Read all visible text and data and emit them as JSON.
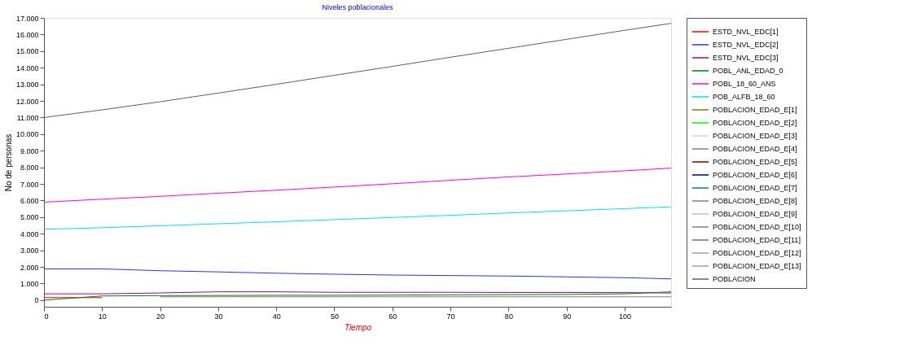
{
  "chart_data": {
    "type": "line",
    "title": "Niveles poblacionales",
    "xlabel": "Tiempo",
    "ylabel": "No de personas",
    "x": [
      0,
      10,
      20,
      30,
      40,
      50,
      60,
      70,
      80,
      90,
      100,
      108
    ],
    "xlim": [
      0,
      108
    ],
    "xticks": [
      0,
      10,
      20,
      30,
      40,
      50,
      60,
      70,
      80,
      90,
      100
    ],
    "ylim": [
      -400,
      17000
    ],
    "yticks": [
      {
        "value": 0,
        "label": "0"
      },
      {
        "value": 1000,
        "label": "1.000"
      },
      {
        "value": 2000,
        "label": "2.000"
      },
      {
        "value": 3000,
        "label": "3.000"
      },
      {
        "value": 4000,
        "label": "4.000"
      },
      {
        "value": 5000,
        "label": "5.000"
      },
      {
        "value": 6000,
        "label": "6.000"
      },
      {
        "value": 7000,
        "label": "7.000"
      },
      {
        "value": 8000,
        "label": "8.000"
      },
      {
        "value": 9000,
        "label": "9.000"
      },
      {
        "value": 10000,
        "label": "10.000"
      },
      {
        "value": 11000,
        "label": "11.000"
      },
      {
        "value": 12000,
        "label": "12.000"
      },
      {
        "value": 13000,
        "label": "13.000"
      },
      {
        "value": 14000,
        "label": "14.000"
      },
      {
        "value": 15000,
        "label": "15.000"
      },
      {
        "value": 16000,
        "label": "16.000"
      },
      {
        "value": 17000,
        "label": "17.000"
      }
    ],
    "grid": false,
    "legend": "right",
    "marker": "none",
    "line_style": "solid",
    "series": [
      {
        "name": "ESTD_NVL_EDC[1]",
        "color": "#ff0000",
        "values": [
          150,
          150,
          null,
          null,
          null,
          null,
          null,
          null,
          null,
          null,
          null,
          null
        ]
      },
      {
        "name": "ESTD_NVL_EDC[2]",
        "color": "#3030ff",
        "values": [
          1880,
          1880,
          1770,
          1700,
          1620,
          1560,
          1510,
          1480,
          1450,
          1400,
          1350,
          1280
        ]
      },
      {
        "name": "ESTD_NVL_EDC[3]",
        "color": "#a000a0",
        "values": [
          380,
          380,
          430,
          500,
          500,
          470,
          470,
          470,
          460,
          460,
          450,
          430
        ]
      },
      {
        "name": "POBL_ANL_EDAD_0",
        "color": "#008000",
        "values": [
          0,
          250,
          270,
          280,
          290,
          290,
          300,
          320,
          330,
          340,
          380,
          500
        ]
      },
      {
        "name": "POBL_18_60_ANS",
        "color": "#ff00ff",
        "values": [
          5900,
          6080,
          6250,
          6440,
          6620,
          6810,
          7010,
          7220,
          7420,
          7600,
          7790,
          7950
        ]
      },
      {
        "name": "POB_ALFB_18_60",
        "color": "#00e5e5",
        "values": [
          4270,
          4360,
          4480,
          4600,
          4720,
          4850,
          4980,
          5110,
          5250,
          5380,
          5510,
          5620
        ]
      },
      {
        "name": "POBLACION_EDAD_E[1]",
        "color": "#808000",
        "values": [
          null,
          null,
          null,
          null,
          null,
          null,
          null,
          null,
          null,
          null,
          null,
          null
        ]
      },
      {
        "name": "POBLACION_EDAD_E[2]",
        "color": "#00ff00",
        "values": [
          null,
          null,
          null,
          null,
          null,
          null,
          null,
          null,
          null,
          null,
          null,
          null
        ]
      },
      {
        "name": "POBLACION_EDAD_E[3]",
        "color": "#d3d3d3",
        "values": [
          null,
          null,
          null,
          null,
          null,
          null,
          null,
          null,
          null,
          null,
          null,
          null
        ]
      },
      {
        "name": "POBLACION_EDAD_E[4]",
        "color": "#808080",
        "values": [
          null,
          null,
          200,
          200,
          200,
          200,
          200,
          200,
          200,
          200,
          200,
          200
        ]
      },
      {
        "name": "POBLACION_EDAD_E[5]",
        "color": "#800000",
        "values": [
          null,
          null,
          null,
          null,
          null,
          null,
          null,
          null,
          null,
          null,
          null,
          null
        ]
      },
      {
        "name": "POBLACION_EDAD_E[6]",
        "color": "#000080",
        "values": [
          null,
          null,
          null,
          null,
          null,
          null,
          null,
          null,
          null,
          null,
          null,
          null
        ]
      },
      {
        "name": "POBLACION_EDAD_E[7]",
        "color": "#008080",
        "values": [
          null,
          null,
          null,
          null,
          null,
          null,
          null,
          null,
          null,
          null,
          null,
          null
        ]
      },
      {
        "name": "POBLACION_EDAD_E[8]",
        "color": "#808080",
        "values": [
          null,
          null,
          null,
          null,
          null,
          null,
          null,
          null,
          null,
          null,
          null,
          null
        ]
      },
      {
        "name": "POBLACION_EDAD_E[9]",
        "color": "#c0c0c0",
        "values": [
          null,
          null,
          null,
          null,
          null,
          null,
          null,
          null,
          null,
          null,
          null,
          null
        ]
      },
      {
        "name": "POBLACION_EDAD_E[10]",
        "color": "#808080",
        "values": [
          null,
          null,
          null,
          null,
          null,
          null,
          null,
          null,
          null,
          null,
          null,
          null
        ]
      },
      {
        "name": "POBLACION_EDAD_E[11]",
        "color": "#707070",
        "values": [
          null,
          null,
          null,
          null,
          null,
          null,
          null,
          null,
          null,
          null,
          null,
          null
        ]
      },
      {
        "name": "POBLACION_EDAD_E[12]",
        "color": "#a0a0a0",
        "values": [
          null,
          null,
          null,
          null,
          null,
          null,
          null,
          null,
          null,
          null,
          null,
          null
        ]
      },
      {
        "name": "POBLACION_EDAD_E[13]",
        "color": "#a0a0a0",
        "values": [
          null,
          null,
          null,
          null,
          null,
          null,
          null,
          null,
          null,
          null,
          null,
          null
        ]
      },
      {
        "name": "POBLACION",
        "color": "#606060",
        "values": [
          11000,
          11460,
          11950,
          12470,
          13000,
          13540,
          14080,
          14630,
          15170,
          15710,
          16250,
          16670
        ]
      }
    ]
  }
}
